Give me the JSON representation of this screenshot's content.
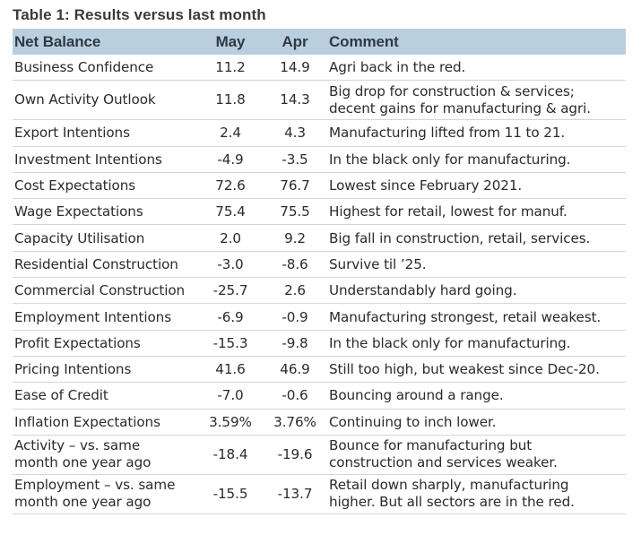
{
  "title": "Table 1: Results versus last month",
  "headers": {
    "name": "Net Balance",
    "may": "May",
    "apr": "Apr",
    "comment": "Comment"
  },
  "rows": [
    {
      "name": [
        "Business Confidence"
      ],
      "may": "11.2",
      "apr": "14.9",
      "comment": [
        "Agri back in the red."
      ]
    },
    {
      "name": [
        "Own Activity Outlook"
      ],
      "may": "11.8",
      "apr": "14.3",
      "comment": [
        "Big drop for construction & services;",
        "decent gains for manufacturing & agri."
      ]
    },
    {
      "name": [
        "Export Intentions"
      ],
      "may": "2.4",
      "apr": "4.3",
      "comment": [
        "Manufacturing lifted from 11 to 21."
      ]
    },
    {
      "name": [
        "Investment Intentions"
      ],
      "may": "-4.9",
      "apr": "-3.5",
      "comment": [
        "In the black only for manufacturing."
      ]
    },
    {
      "name": [
        "Cost Expectations"
      ],
      "may": "72.6",
      "apr": "76.7",
      "comment": [
        "Lowest since February 2021."
      ]
    },
    {
      "name": [
        "Wage Expectations"
      ],
      "may": "75.4",
      "apr": "75.5",
      "comment": [
        "Highest for retail, lowest for manuf."
      ]
    },
    {
      "name": [
        "Capacity Utilisation"
      ],
      "may": "2.0",
      "apr": "9.2",
      "comment": [
        "Big fall in construction, retail, services."
      ]
    },
    {
      "name": [
        "Residential Construction"
      ],
      "may": "-3.0",
      "apr": "-8.6",
      "comment": [
        "Survive til ’25."
      ]
    },
    {
      "name": [
        "Commercial Construction"
      ],
      "may": "-25.7",
      "apr": "2.6",
      "comment": [
        "Understandably hard going."
      ]
    },
    {
      "name": [
        "Employment Intentions"
      ],
      "may": "-6.9",
      "apr": "-0.9",
      "comment": [
        "Manufacturing strongest, retail weakest."
      ]
    },
    {
      "name": [
        "Profit Expectations"
      ],
      "may": "-15.3",
      "apr": "-9.8",
      "comment": [
        "In the black only for manufacturing."
      ]
    },
    {
      "name": [
        "Pricing Intentions"
      ],
      "may": "41.6",
      "apr": "46.9",
      "comment": [
        "Still too high, but weakest since Dec-20."
      ]
    },
    {
      "name": [
        "Ease of Credit"
      ],
      "may": "-7.0",
      "apr": "-0.6",
      "comment": [
        "Bouncing around a range."
      ]
    },
    {
      "name": [
        "Inflation Expectations"
      ],
      "may": "3.59%",
      "apr": "3.76%",
      "comment": [
        "Continuing to inch lower."
      ]
    },
    {
      "name": [
        "Activity – vs. same",
        "month one year ago"
      ],
      "may": "-18.4",
      "apr": "-19.6",
      "comment": [
        "Bounce for manufacturing but",
        "construction and services weaker."
      ]
    },
    {
      "name": [
        "Employment – vs. same",
        "month one year ago"
      ],
      "may": "-15.5",
      "apr": "-13.7",
      "comment": [
        "Retail down sharply, manufacturing",
        "higher. But all sectors are in the red."
      ]
    }
  ]
}
